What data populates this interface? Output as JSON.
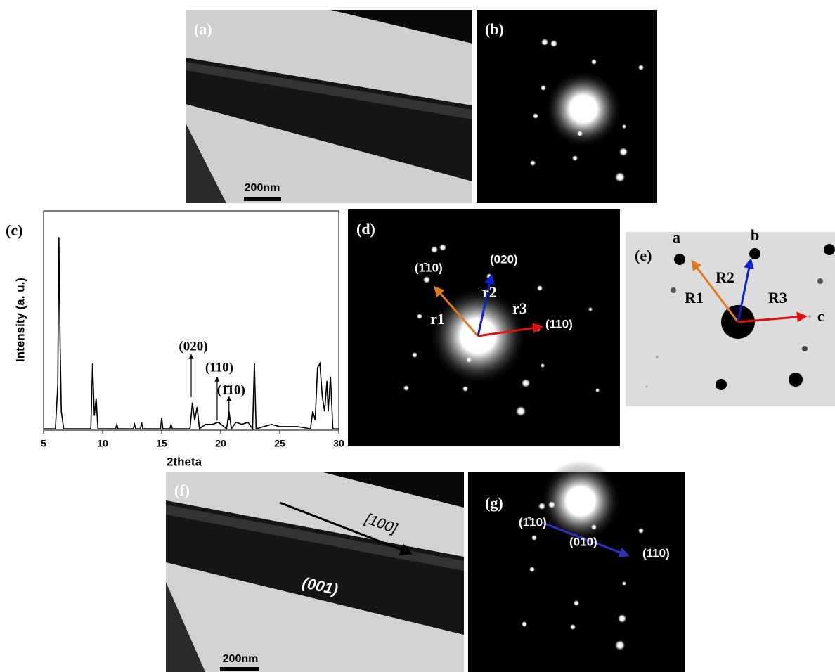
{
  "panels": {
    "a": {
      "label": "(a)",
      "scale_bar": "200nm"
    },
    "b": {
      "label": "(b)"
    },
    "c": {
      "label": "(c)"
    },
    "d": {
      "label": "(d)",
      "spot_1": "(1̄10)",
      "spot_2": "(020)",
      "spot_3": "(110)",
      "vector_1": "r1",
      "vector_2": "r2",
      "vector_3": "r3"
    },
    "e": {
      "label": "(e)",
      "spot_1": "a",
      "spot_2": "b",
      "spot_3": "c",
      "vector_1": "R1",
      "vector_2": "R2",
      "vector_3": "R3"
    },
    "f": {
      "label": "(f)",
      "direction": "[100]",
      "facet": "(001)",
      "scale_bar": "200nm"
    },
    "g": {
      "label": "(g)",
      "spot_1": "(1̄10)",
      "spot_2": "(010)",
      "spot_3": "(110)"
    }
  },
  "chart_data": {
    "type": "line",
    "x_label": "2theta",
    "y_label": "Intensity (a. u.)",
    "color": "#000000",
    "x": [
      5,
      6.0,
      6.2,
      6.3,
      6.4,
      6.5,
      6.7,
      9.0,
      9.15,
      9.3,
      9.45,
      9.6,
      11.1,
      11.2,
      11.3,
      12.6,
      12.7,
      12.8,
      13.2,
      13.3,
      13.4,
      14.9,
      15.0,
      15.1,
      15.7,
      15.8,
      15.9,
      17.4,
      17.6,
      17.8,
      18.0,
      18.2,
      18.7,
      19.3,
      19.8,
      20.5,
      20.7,
      20.9,
      21.3,
      21.8,
      22.3,
      22.7,
      22.85,
      23.0,
      24.3,
      25.0,
      26.5,
      27.6,
      27.8,
      28.0,
      28.2,
      28.4,
      28.6,
      28.8,
      29.0,
      29.1,
      29.3,
      29.5,
      30
    ],
    "values": [
      0,
      0,
      20,
      88,
      40,
      8,
      0,
      0,
      30,
      6,
      14,
      0,
      0,
      2,
      0,
      0,
      2,
      0,
      0,
      3,
      0,
      0,
      5,
      0,
      0,
      2,
      0,
      0,
      12,
      4,
      10,
      0,
      2,
      2,
      3,
      0,
      8,
      0,
      3,
      2,
      3,
      0,
      30,
      0,
      2,
      1,
      1,
      0,
      8,
      4,
      28,
      30,
      15,
      8,
      22,
      8,
      24,
      0,
      0
    ],
    "xlim": [
      5,
      30
    ],
    "xticks": [
      5,
      10,
      15,
      20,
      25,
      30
    ],
    "ylim": [
      0,
      100
    ],
    "annotations": [
      {
        "text": "(020)",
        "x": 17.5
      },
      {
        "text": "(110)",
        "x": 19.7
      },
      {
        "text": "(1̄10)",
        "x": 20.7
      }
    ]
  }
}
